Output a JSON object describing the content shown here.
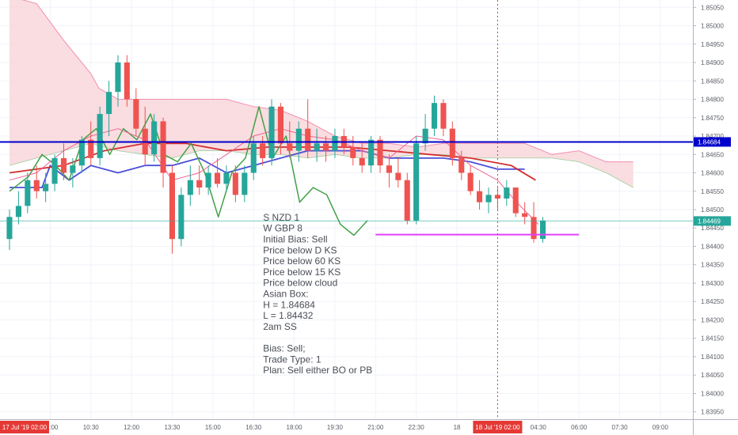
{
  "chart_data": {
    "type": "candlestick",
    "instrument_hidden": true,
    "colors": {
      "up": "#26a69a",
      "down": "#ef5350",
      "kijun_d": "#4b4fd8",
      "kijun_60": "#d32f2f",
      "chikou": "#43a047",
      "tenkan_15": "#f06292",
      "cloud_fill": "#f8d7da",
      "cloud_line": "#f48fb1",
      "asian_box": "#0000cc",
      "asian_low": "#e040fb",
      "current_price": "#26a69a",
      "session_line": "#e53935",
      "grid": "#f0f3fa",
      "axis_text": "#5b5f67"
    },
    "y_axis": {
      "ticks": [
        "1.85050",
        "1.85000",
        "1.84950",
        "1.84900",
        "1.84850",
        "1.84800",
        "1.84750",
        "1.84700",
        "1.84650",
        "1.84600",
        "1.84550",
        "1.84500",
        "1.84450",
        "1.84400",
        "1.84350",
        "1.84300",
        "1.84250",
        "1.84200",
        "1.84150",
        "1.84100",
        "1.84050",
        "1.84000",
        "1.83950"
      ],
      "tick_values": [
        1.8505,
        1.85,
        1.8495,
        1.849,
        1.8485,
        1.848,
        1.8475,
        1.847,
        1.8465,
        1.846,
        1.8455,
        1.845,
        1.8445,
        1.844,
        1.8435,
        1.843,
        1.8425,
        1.842,
        1.8415,
        1.841,
        1.8405,
        1.84,
        1.8395
      ],
      "range": [
        1.8393,
        1.8507
      ]
    },
    "x_axis": {
      "ticks": [
        "09:00",
        "10:30",
        "12:00",
        "13:30",
        "15:00",
        "16:30",
        "18:00",
        "19:30",
        "21:00",
        "22:30",
        "18",
        "00",
        "04:30",
        "06:00",
        "07:30",
        "09:00"
      ],
      "tick_times": [
        1.5,
        3,
        4.5,
        6,
        7.5,
        9,
        10.5,
        12,
        13.5,
        15,
        16.5,
        18,
        19.5,
        21,
        22.5,
        24
      ],
      "start_label": "17 Jul '19   02:00",
      "cursor_label": "18 Jul '19   02:00",
      "cursor_time": 18,
      "range": [
        -0.35,
        25.2
      ]
    },
    "candles": [
      {
        "o": 1.8442,
        "h": 1.845,
        "l": 1.8439,
        "c": 1.8448
      },
      {
        "o": 1.8448,
        "h": 1.8455,
        "l": 1.8446,
        "c": 1.8451
      },
      {
        "o": 1.8451,
        "h": 1.846,
        "l": 1.8449,
        "c": 1.8458
      },
      {
        "o": 1.8458,
        "h": 1.8462,
        "l": 1.8453,
        "c": 1.8455
      },
      {
        "o": 1.8455,
        "h": 1.846,
        "l": 1.8452,
        "c": 1.8457
      },
      {
        "o": 1.8457,
        "h": 1.8465,
        "l": 1.8455,
        "c": 1.8464
      },
      {
        "o": 1.8464,
        "h": 1.8468,
        "l": 1.8458,
        "c": 1.846
      },
      {
        "o": 1.846,
        "h": 1.8464,
        "l": 1.8456,
        "c": 1.8462
      },
      {
        "o": 1.8462,
        "h": 1.847,
        "l": 1.846,
        "c": 1.8469
      },
      {
        "o": 1.8469,
        "h": 1.8474,
        "l": 1.8462,
        "c": 1.8464
      },
      {
        "o": 1.8464,
        "h": 1.8478,
        "l": 1.8462,
        "c": 1.8476
      },
      {
        "o": 1.8476,
        "h": 1.8485,
        "l": 1.847,
        "c": 1.8482
      },
      {
        "o": 1.8482,
        "h": 1.8492,
        "l": 1.8478,
        "c": 1.849
      },
      {
        "o": 1.849,
        "h": 1.8492,
        "l": 1.8478,
        "c": 1.848
      },
      {
        "o": 1.848,
        "h": 1.8483,
        "l": 1.847,
        "c": 1.8472
      },
      {
        "o": 1.8472,
        "h": 1.8478,
        "l": 1.8462,
        "c": 1.8465
      },
      {
        "o": 1.8465,
        "h": 1.8476,
        "l": 1.8463,
        "c": 1.8474
      },
      {
        "o": 1.8474,
        "h": 1.8475,
        "l": 1.8456,
        "c": 1.846
      },
      {
        "o": 1.846,
        "h": 1.8462,
        "l": 1.8438,
        "c": 1.8442
      },
      {
        "o": 1.8442,
        "h": 1.8456,
        "l": 1.844,
        "c": 1.8454
      },
      {
        "o": 1.8454,
        "h": 1.8462,
        "l": 1.8451,
        "c": 1.8458
      },
      {
        "o": 1.8458,
        "h": 1.8462,
        "l": 1.8454,
        "c": 1.8456
      },
      {
        "o": 1.8456,
        "h": 1.8462,
        "l": 1.8454,
        "c": 1.846
      },
      {
        "o": 1.846,
        "h": 1.8464,
        "l": 1.8456,
        "c": 1.8457
      },
      {
        "o": 1.8457,
        "h": 1.8462,
        "l": 1.8455,
        "c": 1.846
      },
      {
        "o": 1.846,
        "h": 1.8462,
        "l": 1.8452,
        "c": 1.8454
      },
      {
        "o": 1.8454,
        "h": 1.8462,
        "l": 1.8452,
        "c": 1.846
      },
      {
        "o": 1.846,
        "h": 1.847,
        "l": 1.8458,
        "c": 1.8468
      },
      {
        "o": 1.8468,
        "h": 1.847,
        "l": 1.8462,
        "c": 1.8464
      },
      {
        "o": 1.8464,
        "h": 1.848,
        "l": 1.8462,
        "c": 1.8478
      },
      {
        "o": 1.8478,
        "h": 1.8479,
        "l": 1.8465,
        "c": 1.8468
      },
      {
        "o": 1.8468,
        "h": 1.8474,
        "l": 1.8464,
        "c": 1.8466
      },
      {
        "o": 1.8466,
        "h": 1.8474,
        "l": 1.8463,
        "c": 1.8472
      },
      {
        "o": 1.8472,
        "h": 1.848,
        "l": 1.8464,
        "c": 1.8466
      },
      {
        "o": 1.8466,
        "h": 1.8472,
        "l": 1.8463,
        "c": 1.8468
      },
      {
        "o": 1.8468,
        "h": 1.847,
        "l": 1.8463,
        "c": 1.8466
      },
      {
        "o": 1.8466,
        "h": 1.8472,
        "l": 1.8464,
        "c": 1.847
      },
      {
        "o": 1.847,
        "h": 1.8472,
        "l": 1.8465,
        "c": 1.8467
      },
      {
        "o": 1.8467,
        "h": 1.847,
        "l": 1.8462,
        "c": 1.8464
      },
      {
        "o": 1.8464,
        "h": 1.8468,
        "l": 1.846,
        "c": 1.8462
      },
      {
        "o": 1.8462,
        "h": 1.847,
        "l": 1.846,
        "c": 1.8469
      },
      {
        "o": 1.8469,
        "h": 1.847,
        "l": 1.846,
        "c": 1.8462
      },
      {
        "o": 1.8462,
        "h": 1.8465,
        "l": 1.8456,
        "c": 1.846
      },
      {
        "o": 1.846,
        "h": 1.8464,
        "l": 1.8456,
        "c": 1.8458
      },
      {
        "o": 1.8458,
        "h": 1.846,
        "l": 1.8446,
        "c": 1.8447
      },
      {
        "o": 1.8447,
        "h": 1.847,
        "l": 1.8446,
        "c": 1.8468
      },
      {
        "o": 1.8468,
        "h": 1.8476,
        "l": 1.8466,
        "c": 1.8472
      },
      {
        "o": 1.8472,
        "h": 1.8481,
        "l": 1.847,
        "c": 1.8479
      },
      {
        "o": 1.8479,
        "h": 1.848,
        "l": 1.847,
        "c": 1.8472
      },
      {
        "o": 1.8472,
        "h": 1.8474,
        "l": 1.8462,
        "c": 1.8464
      },
      {
        "o": 1.8464,
        "h": 1.8466,
        "l": 1.8458,
        "c": 1.846
      },
      {
        "o": 1.846,
        "h": 1.8462,
        "l": 1.8454,
        "c": 1.8455
      },
      {
        "o": 1.8455,
        "h": 1.8458,
        "l": 1.845,
        "c": 1.8452
      },
      {
        "o": 1.8452,
        "h": 1.8456,
        "l": 1.8449,
        "c": 1.8454
      },
      {
        "o": 1.8454,
        "h": 1.8456,
        "l": 1.845,
        "c": 1.8453
      },
      {
        "o": 1.8453,
        "h": 1.8458,
        "l": 1.8451,
        "c": 1.8456
      },
      {
        "o": 1.8456,
        "h": 1.8456,
        "l": 1.8448,
        "c": 1.8449
      },
      {
        "o": 1.8449,
        "h": 1.8452,
        "l": 1.8446,
        "c": 1.8448
      },
      {
        "o": 1.8448,
        "h": 1.8452,
        "l": 1.8441,
        "c": 1.8442
      },
      {
        "o": 1.8442,
        "h": 1.8448,
        "l": 1.8441,
        "c": 1.8447
      }
    ],
    "candle_times": [
      0,
      0.333,
      0.667,
      1,
      1.333,
      1.667,
      2,
      2.333,
      2.667,
      3,
      3.333,
      3.667,
      4,
      4.333,
      4.667,
      5,
      5.333,
      5.667,
      6,
      6.333,
      6.667,
      7,
      7.333,
      7.667,
      8,
      8.333,
      8.667,
      9,
      9.333,
      9.667,
      10,
      10.333,
      10.667,
      11,
      11.333,
      11.667,
      12,
      12.333,
      12.667,
      13,
      13.333,
      13.667,
      14,
      14.333,
      14.667,
      15,
      15.333,
      15.667,
      16,
      16.333,
      16.667,
      17,
      17.333,
      17.667,
      18,
      18.333,
      18.667,
      19,
      19.333,
      19.667
    ],
    "candle_time_note": "",
    "lines": [
      {
        "key": "kijun_d",
        "points": [
          [
            0,
            1.8456
          ],
          [
            1.2,
            1.8456
          ],
          [
            1.5,
            1.8462
          ],
          [
            2.2,
            1.8458
          ],
          [
            3,
            1.8462
          ],
          [
            4,
            1.846
          ],
          [
            5,
            1.8462
          ],
          [
            6,
            1.8462
          ],
          [
            7,
            1.8464
          ],
          [
            8,
            1.846
          ],
          [
            9,
            1.8462
          ],
          [
            10,
            1.8464
          ],
          [
            11,
            1.8466
          ],
          [
            12,
            1.8466
          ],
          [
            13,
            1.8466
          ],
          [
            14,
            1.8464
          ],
          [
            15,
            1.8464
          ],
          [
            16,
            1.8464
          ],
          [
            17,
            1.8463
          ],
          [
            18,
            1.8461
          ],
          [
            19,
            1.8461
          ]
        ]
      },
      {
        "key": "kijun_60",
        "points": [
          [
            0,
            1.846
          ],
          [
            2,
            1.8462
          ],
          [
            3.5,
            1.8466
          ],
          [
            5,
            1.8468
          ],
          [
            6.5,
            1.8468
          ],
          [
            8,
            1.8466
          ],
          [
            9.5,
            1.8467
          ],
          [
            11,
            1.8467
          ],
          [
            12.5,
            1.8467
          ],
          [
            14,
            1.8466
          ],
          [
            15.5,
            1.8465
          ],
          [
            17,
            1.8464
          ],
          [
            18.5,
            1.8462
          ],
          [
            19.4,
            1.8458
          ]
        ]
      },
      {
        "key": "chikou",
        "points": [
          [
            0,
            1.8455
          ],
          [
            0.7,
            1.8459
          ],
          [
            1.2,
            1.8465
          ],
          [
            1.7,
            1.8462
          ],
          [
            2.2,
            1.8458
          ],
          [
            2.7,
            1.8469
          ],
          [
            3.2,
            1.8472
          ],
          [
            3.7,
            1.8465
          ],
          [
            4.2,
            1.8472
          ],
          [
            4.7,
            1.8469
          ],
          [
            5.2,
            1.8476
          ],
          [
            5.7,
            1.8465
          ],
          [
            6.2,
            1.8463
          ],
          [
            6.7,
            1.8468
          ],
          [
            7.2,
            1.846
          ],
          [
            7.7,
            1.8448
          ],
          [
            8.2,
            1.846
          ],
          [
            8.7,
            1.8464
          ],
          [
            9.2,
            1.8478
          ],
          [
            9.7,
            1.8464
          ],
          [
            10.2,
            1.847
          ],
          [
            10.7,
            1.8452
          ],
          [
            11.2,
            1.8456
          ],
          [
            11.7,
            1.8454
          ],
          [
            12.2,
            1.8446
          ],
          [
            12.7,
            1.8443
          ],
          [
            13.2,
            1.8447
          ]
        ]
      },
      {
        "key": "tenkan_15",
        "points": [
          [
            0,
            1.8458
          ],
          [
            1,
            1.846
          ],
          [
            2,
            1.8466
          ],
          [
            3,
            1.847
          ],
          [
            4,
            1.8472
          ],
          [
            5,
            1.8469
          ],
          [
            6,
            1.8458
          ],
          [
            7,
            1.846
          ],
          [
            8,
            1.8465
          ],
          [
            9,
            1.847
          ],
          [
            10,
            1.8472
          ],
          [
            11,
            1.847
          ],
          [
            12,
            1.8469
          ],
          [
            13,
            1.8466
          ],
          [
            14,
            1.8464
          ],
          [
            15,
            1.847
          ],
          [
            16,
            1.8469
          ],
          [
            17,
            1.8462
          ],
          [
            18,
            1.8458
          ],
          [
            18.7,
            1.8452
          ],
          [
            19.5,
            1.8446
          ]
        ]
      }
    ],
    "cloud": {
      "upper": [
        [
          0,
          1.8508
        ],
        [
          1,
          1.8506
        ],
        [
          2,
          1.8496
        ],
        [
          3,
          1.8487
        ],
        [
          3.3,
          1.8483
        ],
        [
          4,
          1.848
        ],
        [
          5,
          1.848
        ],
        [
          6,
          1.848
        ],
        [
          7,
          1.848
        ],
        [
          8,
          1.848
        ],
        [
          9,
          1.8478
        ],
        [
          10,
          1.8477
        ],
        [
          11,
          1.8474
        ],
        [
          12,
          1.847
        ],
        [
          13,
          1.8468
        ],
        [
          14,
          1.8468
        ],
        [
          15,
          1.8467
        ],
        [
          16,
          1.8468
        ],
        [
          17,
          1.8468
        ],
        [
          18,
          1.8468
        ],
        [
          19,
          1.8468
        ],
        [
          20,
          1.8465
        ],
        [
          21,
          1.8466
        ],
        [
          22,
          1.8463
        ],
        [
          23,
          1.8463
        ]
      ],
      "lower": [
        [
          0,
          1.8462
        ],
        [
          1,
          1.8464
        ],
        [
          2,
          1.8466
        ],
        [
          3,
          1.8468
        ],
        [
          4,
          1.8466
        ],
        [
          5,
          1.8465
        ],
        [
          6,
          1.8464
        ],
        [
          7,
          1.8466
        ],
        [
          8,
          1.8466
        ],
        [
          9,
          1.8465
        ],
        [
          10,
          1.8465
        ],
        [
          11,
          1.8464
        ],
        [
          12,
          1.8465
        ],
        [
          13,
          1.8464
        ],
        [
          14,
          1.8464
        ],
        [
          15,
          1.8465
        ],
        [
          16,
          1.8465
        ],
        [
          17,
          1.8464
        ],
        [
          18,
          1.8464
        ],
        [
          19,
          1.8464
        ],
        [
          20,
          1.8464
        ],
        [
          21,
          1.8463
        ],
        [
          22,
          1.846
        ],
        [
          23,
          1.8456
        ]
      ]
    },
    "asian_box": {
      "high": 1.84684,
      "low": 1.84432,
      "high_label": "1.84684",
      "low_from": 13.5,
      "low_to": 21
    },
    "current_price": {
      "value": 1.84469,
      "label": "1.84469"
    },
    "annotation": [
      "S NZD 1",
      "W GBP 8",
      "Initial Bias: Sell",
      "Price below D KS",
      "Price below 60 KS",
      "Price below 15 KS",
      "Price below cloud",
      "Asian Box:",
      "H = 1.84684",
      "L = 1.84432",
      "2am SS",
      "",
      "Bias: Sell;",
      "Trade Type: 1",
      "Plan: Sell either BO or PB"
    ],
    "annotation_anchor": {
      "time": 9.35,
      "price": 1.8447
    }
  }
}
